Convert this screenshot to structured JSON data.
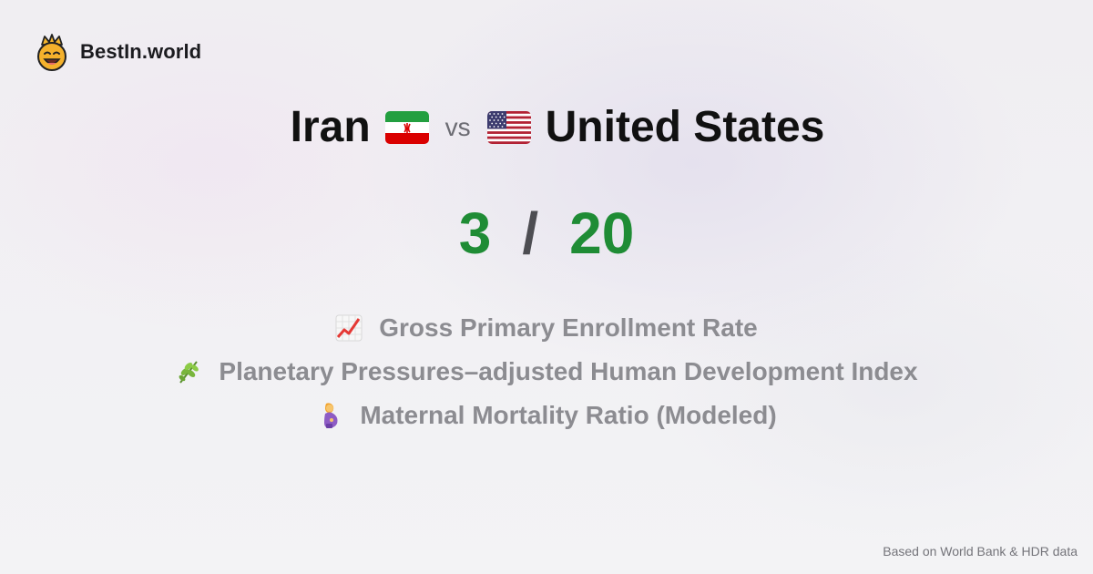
{
  "brand": {
    "name": "BestIn.world",
    "logo_icon": "crown-smiley-icon"
  },
  "comparison": {
    "left_country": "Iran",
    "left_flag": "iran-flag-icon",
    "vs_label": "vs",
    "right_country": "United States",
    "right_flag": "us-flag-icon"
  },
  "score": {
    "left": "3",
    "separator": "/",
    "right": "20",
    "color": "#1f8c35"
  },
  "metrics": [
    {
      "icon": "chart-increasing-icon",
      "label": "Gross Primary Enrollment Rate"
    },
    {
      "icon": "herb-icon",
      "label": "Planetary Pressures–adjusted Human Development Index"
    },
    {
      "icon": "pregnant-woman-icon",
      "label": "Maternal Mortality Ratio (Modeled)"
    }
  ],
  "footer": {
    "source_text": "Based on World Bank & HDR data"
  }
}
